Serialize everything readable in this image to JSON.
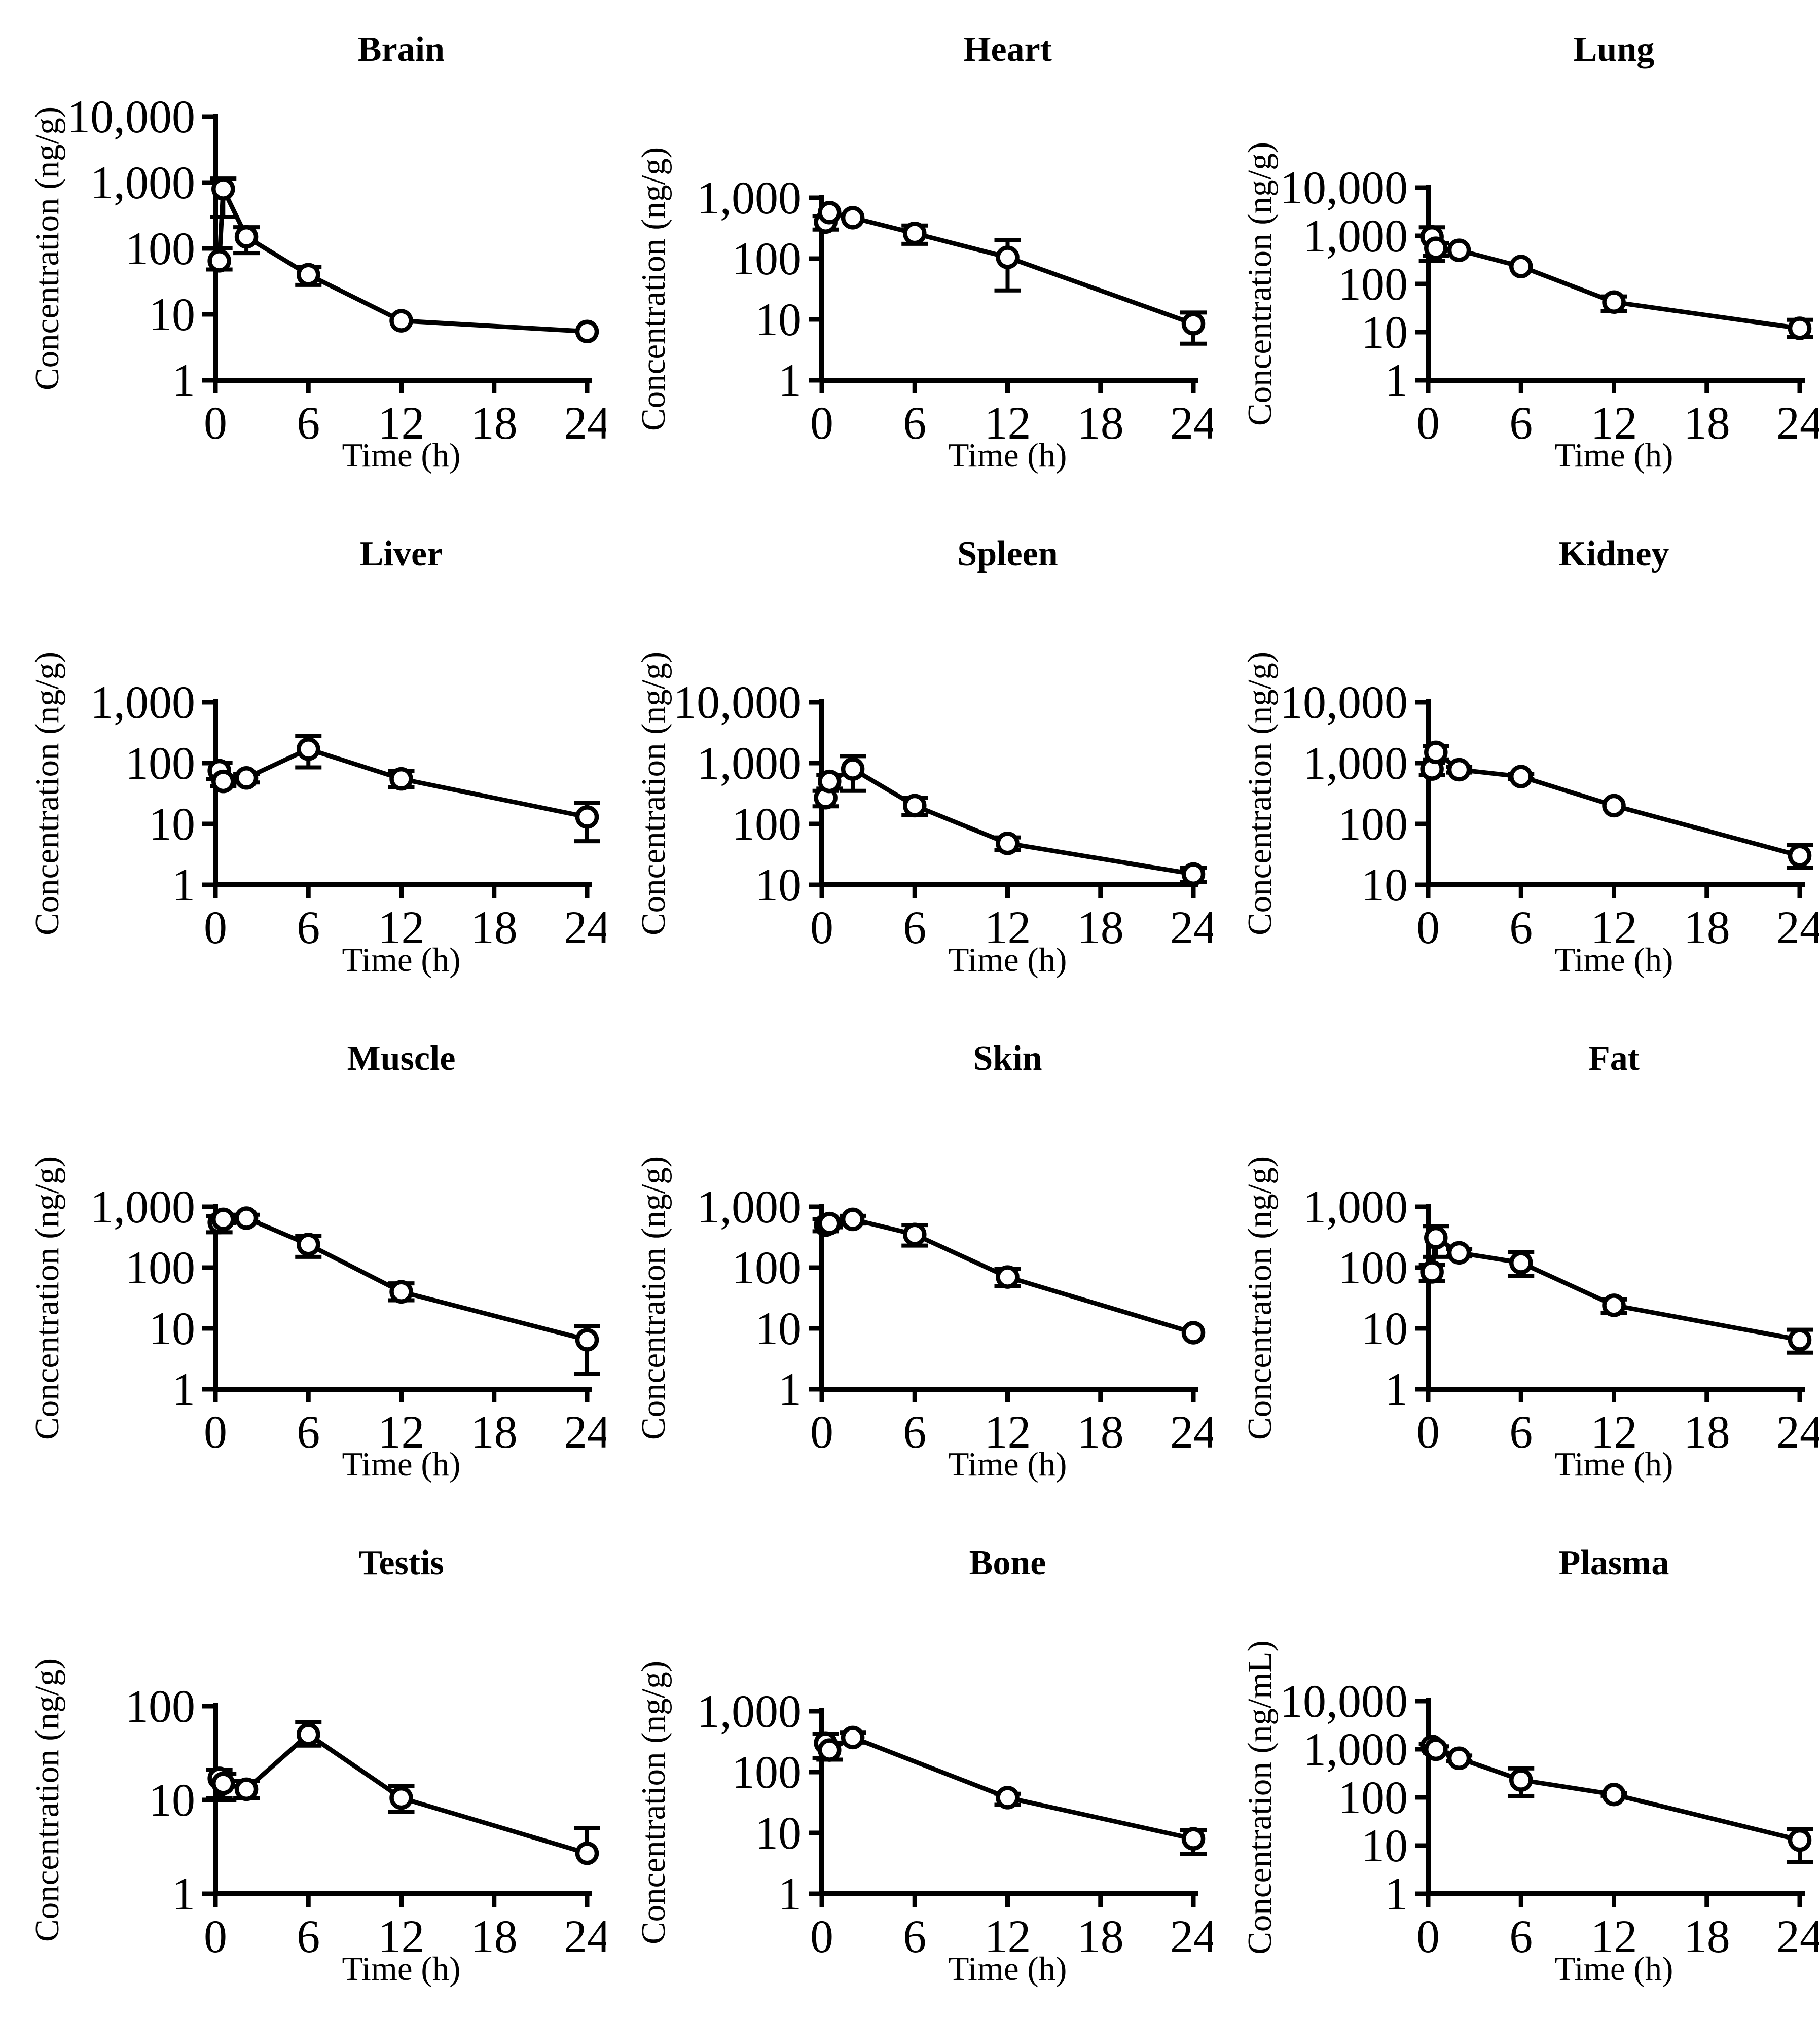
{
  "figure": {
    "background": "#ffffff",
    "ink": "#000000",
    "layout": "3x4 grid of pharmacokinetic tissue-distribution plots",
    "xlabel": "Time (h)",
    "ylabel_tissue": "Concentration (ng/g)",
    "ylabel_plasma": "Concentration (ng/mL)"
  },
  "chart_data": [
    {
      "type": "line",
      "title": "Brain",
      "xlabel": "Time (h)",
      "ylabel": "Concentration (ng/g)",
      "xlim": [
        0,
        24
      ],
      "xticks": [
        0,
        6,
        12,
        18,
        24
      ],
      "yscale": "log",
      "ylim": [
        1,
        10000
      ],
      "marker": "open-circle",
      "color": "#000000",
      "x": [
        0.25,
        0.5,
        2,
        6,
        12,
        24
      ],
      "y": [
        65,
        800,
        150,
        40,
        8,
        5.5
      ],
      "y_err_low": [
        48,
        300,
        85,
        28,
        8,
        5.5
      ],
      "y_err_high": [
        100,
        1150,
        210,
        52,
        8,
        5.5
      ]
    },
    {
      "type": "line",
      "title": "Heart",
      "xlabel": "Time (h)",
      "ylabel": "Concentration (ng/g)",
      "xlim": [
        0,
        24
      ],
      "xticks": [
        0,
        6,
        12,
        18,
        24
      ],
      "yscale": "log",
      "ylim": [
        1,
        1000
      ],
      "marker": "open-circle",
      "color": "#000000",
      "x": [
        0.25,
        0.5,
        2,
        6,
        12,
        24
      ],
      "y": [
        400,
        570,
        470,
        260,
        105,
        8.5
      ],
      "y_err_low": [
        300,
        570,
        470,
        175,
        30,
        4
      ],
      "y_err_high": [
        500,
        570,
        470,
        350,
        200,
        13
      ]
    },
    {
      "type": "line",
      "title": "Lung",
      "xlabel": "Time (h)",
      "ylabel": "Concentration (ng/g)",
      "xlim": [
        0,
        24
      ],
      "xticks": [
        0,
        6,
        12,
        18,
        24
      ],
      "yscale": "log",
      "ylim": [
        1,
        10000
      ],
      "marker": "open-circle",
      "color": "#000000",
      "x": [
        0.25,
        0.5,
        2,
        6,
        12,
        24
      ],
      "y": [
        950,
        550,
        500,
        230,
        42,
        12
      ],
      "y_err_low": [
        300,
        380,
        500,
        230,
        27,
        8
      ],
      "y_err_high": [
        1500,
        700,
        500,
        230,
        55,
        18
      ]
    },
    {
      "type": "line",
      "title": "Liver",
      "xlabel": "Time (h)",
      "ylabel": "Concentration (ng/g)",
      "xlim": [
        0,
        24
      ],
      "xticks": [
        0,
        6,
        12,
        18,
        24
      ],
      "yscale": "log",
      "ylim": [
        1,
        1000
      ],
      "marker": "open-circle",
      "color": "#000000",
      "x": [
        0.25,
        0.5,
        2,
        6,
        12,
        24
      ],
      "y": [
        75,
        50,
        57,
        170,
        55,
        13
      ],
      "y_err_low": [
        55,
        42,
        48,
        85,
        40,
        5.2
      ],
      "y_err_high": [
        100,
        58,
        66,
        280,
        75,
        22
      ]
    },
    {
      "type": "line",
      "title": "Spleen",
      "xlabel": "Time (h)",
      "ylabel": "Concentration (ng/g)",
      "xlim": [
        0,
        24
      ],
      "xticks": [
        0,
        6,
        12,
        18,
        24
      ],
      "yscale": "log",
      "ylim": [
        10,
        10000
      ],
      "marker": "open-circle",
      "color": "#000000",
      "x": [
        0.25,
        0.5,
        2,
        6,
        12,
        24
      ],
      "y": [
        270,
        500,
        800,
        200,
        48,
        15
      ],
      "y_err_low": [
        195,
        380,
        350,
        140,
        37,
        11
      ],
      "y_err_high": [
        350,
        640,
        1300,
        270,
        60,
        19
      ]
    },
    {
      "type": "line",
      "title": "Kidney",
      "xlabel": "Time (h)",
      "ylabel": "Concentration (ng/g)",
      "xlim": [
        0,
        24
      ],
      "xticks": [
        0,
        6,
        12,
        18,
        24
      ],
      "yscale": "log",
      "ylim": [
        10,
        10000
      ],
      "marker": "open-circle",
      "color": "#000000",
      "x": [
        0.25,
        0.5,
        2,
        6,
        12,
        24
      ],
      "y": [
        800,
        1500,
        780,
        600,
        200,
        30
      ],
      "y_err_low": [
        640,
        1150,
        700,
        545,
        195,
        19
      ],
      "y_err_high": [
        1000,
        1900,
        870,
        660,
        205,
        45
      ]
    },
    {
      "type": "line",
      "title": "Muscle",
      "xlabel": "Time (h)",
      "ylabel": "Concentration (ng/g)",
      "xlim": [
        0,
        24
      ],
      "xticks": [
        0,
        6,
        12,
        18,
        24
      ],
      "yscale": "log",
      "ylim": [
        1,
        1000
      ],
      "marker": "open-circle",
      "color": "#000000",
      "x": [
        0.25,
        0.5,
        2,
        6,
        12,
        24
      ],
      "y": [
        550,
        620,
        650,
        240,
        40,
        6.5
      ],
      "y_err_low": [
        380,
        540,
        560,
        150,
        29,
        1.8
      ],
      "y_err_high": [
        700,
        700,
        740,
        330,
        55,
        11
      ]
    },
    {
      "type": "line",
      "title": "Skin",
      "xlabel": "Time (h)",
      "ylabel": "Concentration (ng/g)",
      "xlim": [
        0,
        24
      ],
      "xticks": [
        0,
        6,
        12,
        18,
        24
      ],
      "yscale": "log",
      "ylim": [
        1,
        1000
      ],
      "marker": "open-circle",
      "color": "#000000",
      "x": [
        0.25,
        0.5,
        2,
        6,
        12,
        24
      ],
      "y": [
        500,
        530,
        620,
        350,
        70,
        8.5
      ],
      "y_err_low": [
        395,
        460,
        530,
        230,
        50,
        8.5
      ],
      "y_err_high": [
        630,
        610,
        710,
        500,
        95,
        8.5
      ]
    },
    {
      "type": "line",
      "title": "Fat",
      "xlabel": "Time (h)",
      "ylabel": "Concentration (ng/g)",
      "xlim": [
        0,
        24
      ],
      "xticks": [
        0,
        6,
        12,
        18,
        24
      ],
      "yscale": "log",
      "ylim": [
        1,
        1000
      ],
      "marker": "open-circle",
      "color": "#000000",
      "x": [
        0.25,
        0.5,
        2,
        6,
        12,
        24
      ],
      "y": [
        85,
        310,
        175,
        120,
        24,
        6.5
      ],
      "y_err_low": [
        60,
        150,
        152,
        73,
        18,
        4
      ],
      "y_err_high": [
        112,
        480,
        200,
        180,
        30,
        9.5
      ]
    },
    {
      "type": "line",
      "title": "Testis",
      "xlabel": "Time (h)",
      "ylabel": "Concentration (ng/g)",
      "xlim": [
        0,
        24
      ],
      "xticks": [
        0,
        6,
        12,
        18,
        24
      ],
      "yscale": "log",
      "ylim": [
        1,
        100
      ],
      "marker": "open-circle",
      "color": "#000000",
      "x": [
        0.25,
        0.5,
        2,
        6,
        12,
        24
      ],
      "y": [
        17,
        15,
        13,
        50,
        10.5,
        2.7
      ],
      "y_err_low": [
        10.5,
        10,
        10.5,
        38,
        7.5,
        2.7
      ],
      "y_err_high": [
        21,
        19,
        16,
        68,
        14,
        5
      ]
    },
    {
      "type": "line",
      "title": "Bone",
      "xlabel": "Time (h)",
      "ylabel": "Concentration (ng/g)",
      "xlim": [
        0,
        24
      ],
      "xticks": [
        0,
        6,
        12,
        18,
        24
      ],
      "yscale": "log",
      "ylim": [
        1,
        1000
      ],
      "marker": "open-circle",
      "color": "#000000",
      "x": [
        0.25,
        0.5,
        2,
        12,
        24
      ],
      "y": [
        300,
        230,
        370,
        38,
        8
      ],
      "y_err_low": [
        170,
        160,
        305,
        29,
        4.5
      ],
      "y_err_high": [
        430,
        300,
        445,
        44,
        11
      ]
    },
    {
      "type": "line",
      "title": "Plasma",
      "xlabel": "Time (h)",
      "ylabel": "Concentration (ng/mL)",
      "xlim": [
        0,
        24
      ],
      "xticks": [
        0,
        6,
        12,
        18,
        24
      ],
      "yscale": "log",
      "ylim": [
        1,
        10000
      ],
      "marker": "open-circle",
      "color": "#000000",
      "x": [
        0.25,
        0.5,
        2,
        6,
        12,
        24
      ],
      "y": [
        1150,
        1000,
        650,
        230,
        115,
        13
      ],
      "y_err_low": [
        1000,
        850,
        560,
        105,
        108,
        4.5
      ],
      "y_err_high": [
        1300,
        1150,
        740,
        400,
        122,
        22
      ]
    }
  ]
}
